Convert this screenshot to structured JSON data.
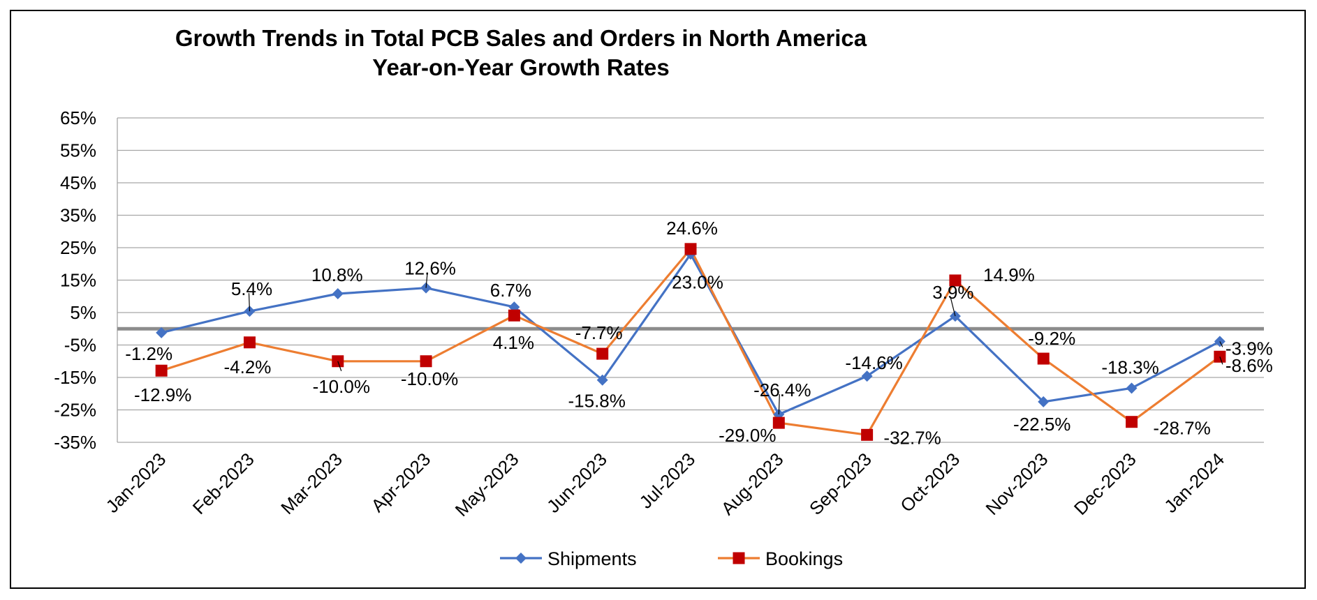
{
  "chart_data": {
    "type": "line",
    "title": "Growth Trends in Total PCB Sales and Orders in North America",
    "subtitle": "Year-on-Year Growth Rates",
    "categories": [
      "Jan-2023",
      "Feb-2023",
      "Mar-2023",
      "Apr-2023",
      "May-2023",
      "Jun-2023",
      "Jul-2023",
      "Aug-2023",
      "Sep-2023",
      "Oct-2023",
      "Nov-2023",
      "Dec-2023",
      "Jan-2024"
    ],
    "ylim": [
      -35,
      65
    ],
    "yticks": [
      65,
      55,
      45,
      35,
      25,
      15,
      5,
      -5,
      -15,
      -25,
      -35
    ],
    "ytick_labels": [
      "65%",
      "55%",
      "45%",
      "35%",
      "25%",
      "15%",
      "5%",
      "-5%",
      "-15%",
      "-25%",
      "-35%"
    ],
    "grid": true,
    "zero_line": true,
    "legend": "bottom",
    "series": [
      {
        "name": "Shipments",
        "color": "#4472C4",
        "marker": "diamond",
        "values": [
          -1.2,
          5.4,
          10.8,
          12.6,
          6.7,
          -15.8,
          23.0,
          -26.4,
          -14.6,
          3.9,
          -22.5,
          -18.3,
          -3.9
        ],
        "labels": [
          "-1.2%",
          "5.4%",
          "10.8%",
          "12.6%",
          "6.7%",
          "-15.8%",
          "23.0%",
          "-26.4%",
          "-14.6%",
          "3.9%",
          "-22.5%",
          "-18.3%",
          "-3.9%"
        ]
      },
      {
        "name": "Bookings",
        "color": "#ED7D31",
        "marker_color": "#C00000",
        "marker": "square",
        "values": [
          -12.9,
          -4.2,
          -10.0,
          -10.0,
          4.1,
          -7.7,
          24.6,
          -29.0,
          -32.7,
          14.9,
          -9.2,
          -28.7,
          -8.6
        ],
        "labels": [
          "-12.9%",
          "-4.2%",
          "-10.0%",
          "-10.0%",
          "4.1%",
          "-7.7%",
          "24.6%",
          "-29.0%",
          "-32.7%",
          "14.9%",
          "-9.2%",
          "-28.7%",
          "-8.6%"
        ]
      }
    ]
  }
}
